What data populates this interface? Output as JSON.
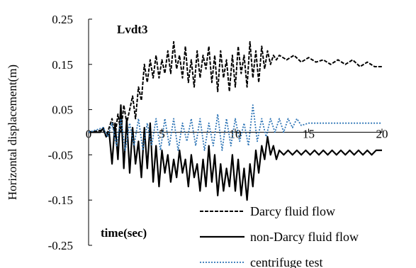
{
  "chart_data": {
    "type": "line",
    "ylabel": "Horizontal displacement(m)",
    "xlabel": "time(sec)",
    "annotation": "Lvdt3",
    "xlim": [
      0,
      20
    ],
    "ylim": [
      -0.25,
      0.25
    ],
    "xticks": [
      {
        "value": 0,
        "label": "0"
      },
      {
        "value": 5,
        "label": "5"
      },
      {
        "value": 10,
        "label": "10"
      },
      {
        "value": 15,
        "label": "15"
      },
      {
        "value": 20,
        "label": "20"
      }
    ],
    "yticks": [
      {
        "value": 0.25,
        "label": "0.25"
      },
      {
        "value": 0.15,
        "label": "0.15"
      },
      {
        "value": 0.05,
        "label": "0.05"
      },
      {
        "value": -0.05,
        "label": "-0.05"
      },
      {
        "value": -0.15,
        "label": "-0.15"
      },
      {
        "value": -0.25,
        "label": "-0.25"
      }
    ],
    "legend_position": "bottom-right",
    "series": [
      {
        "name": "Darcy fluid flow",
        "color": "#000000",
        "style": "dashed",
        "x": [
          0,
          1.0,
          1.2,
          1.4,
          1.6,
          1.8,
          2.0,
          2.2,
          2.4,
          2.6,
          2.8,
          3.0,
          3.2,
          3.4,
          3.6,
          3.8,
          4.0,
          4.2,
          4.4,
          4.6,
          4.8,
          5.0,
          5.2,
          5.4,
          5.6,
          5.8,
          6.0,
          6.2,
          6.4,
          6.6,
          6.8,
          7.0,
          7.2,
          7.4,
          7.6,
          7.8,
          8.0,
          8.2,
          8.4,
          8.6,
          8.8,
          9.0,
          9.2,
          9.4,
          9.6,
          9.8,
          10.0,
          10.2,
          10.4,
          10.6,
          10.8,
          11.0,
          11.2,
          11.4,
          11.6,
          11.8,
          12.0,
          12.2,
          12.4,
          12.6,
          12.8,
          13.0,
          13.5,
          14.0,
          14.5,
          15.0,
          15.5,
          16.0,
          16.5,
          17.0,
          17.5,
          18.0,
          18.5,
          19.0,
          19.5,
          20.0
        ],
        "y": [
          0.0,
          0.005,
          -0.01,
          0.01,
          0.03,
          -0.01,
          0.04,
          0.0,
          0.06,
          0.02,
          0.05,
          0.08,
          0.03,
          0.1,
          0.07,
          0.15,
          0.11,
          0.16,
          0.12,
          0.17,
          0.12,
          0.16,
          0.13,
          0.18,
          0.13,
          0.2,
          0.14,
          0.17,
          0.12,
          0.19,
          0.11,
          0.16,
          0.1,
          0.18,
          0.12,
          0.17,
          0.14,
          0.19,
          0.11,
          0.17,
          0.09,
          0.18,
          0.12,
          0.16,
          0.09,
          0.17,
          0.1,
          0.19,
          0.13,
          0.17,
          0.1,
          0.2,
          0.12,
          0.18,
          0.11,
          0.19,
          0.14,
          0.18,
          0.15,
          0.17,
          0.16,
          0.17,
          0.16,
          0.17,
          0.155,
          0.165,
          0.155,
          0.16,
          0.15,
          0.16,
          0.15,
          0.16,
          0.145,
          0.155,
          0.145,
          0.145
        ]
      },
      {
        "name": "non-Darcy fluid flow",
        "color": "#000000",
        "style": "solid",
        "x": [
          0,
          0.8,
          1.0,
          1.2,
          1.4,
          1.6,
          1.8,
          2.0,
          2.2,
          2.4,
          2.6,
          2.8,
          3.0,
          3.2,
          3.4,
          3.6,
          3.8,
          4.0,
          4.2,
          4.4,
          4.6,
          4.8,
          5.0,
          5.2,
          5.4,
          5.6,
          5.8,
          6.0,
          6.2,
          6.4,
          6.6,
          6.8,
          7.0,
          7.2,
          7.4,
          7.6,
          7.8,
          8.0,
          8.2,
          8.4,
          8.6,
          8.8,
          9.0,
          9.2,
          9.4,
          9.6,
          9.8,
          10.0,
          10.2,
          10.4,
          10.6,
          10.8,
          11.0,
          11.2,
          11.4,
          11.6,
          11.8,
          12.0,
          12.2,
          12.4,
          12.6,
          12.8,
          13.0,
          13.3,
          13.6,
          13.9,
          14.2,
          14.5,
          14.8,
          15.1,
          15.4,
          15.7,
          16.0,
          16.3,
          16.6,
          16.9,
          17.2,
          17.5,
          17.8,
          18.1,
          18.4,
          18.7,
          19.0,
          19.3,
          19.6,
          20.0
        ],
        "y": [
          0.0,
          0.0,
          0.01,
          -0.01,
          0.0,
          -0.07,
          0.02,
          -0.06,
          0.06,
          -0.08,
          0.03,
          -0.09,
          0.01,
          -0.07,
          -0.02,
          -0.1,
          0.01,
          -0.08,
          0.02,
          -0.11,
          -0.03,
          -0.12,
          -0.04,
          -0.09,
          -0.05,
          -0.11,
          -0.06,
          -0.1,
          -0.04,
          -0.09,
          -0.06,
          -0.12,
          -0.05,
          -0.1,
          -0.07,
          -0.13,
          -0.06,
          -0.12,
          -0.03,
          -0.11,
          -0.05,
          -0.14,
          -0.07,
          -0.13,
          -0.08,
          -0.12,
          -0.05,
          -0.13,
          -0.06,
          -0.14,
          -0.08,
          -0.15,
          -0.07,
          -0.12,
          -0.04,
          -0.09,
          -0.03,
          -0.06,
          -0.01,
          -0.05,
          -0.03,
          -0.06,
          -0.04,
          -0.05,
          -0.04,
          -0.05,
          -0.04,
          -0.05,
          -0.04,
          -0.05,
          -0.04,
          -0.05,
          -0.04,
          -0.05,
          -0.04,
          -0.05,
          -0.04,
          -0.05,
          -0.04,
          -0.05,
          -0.04,
          -0.05,
          -0.04,
          -0.05,
          -0.04,
          -0.04
        ]
      },
      {
        "name": "centrifuge test",
        "color": "#2e75b6",
        "style": "dotted",
        "x": [
          0,
          1.0,
          1.3,
          1.6,
          1.9,
          2.2,
          2.5,
          2.8,
          3.1,
          3.4,
          3.7,
          4.0,
          4.3,
          4.6,
          4.9,
          5.2,
          5.5,
          5.8,
          6.1,
          6.4,
          6.7,
          7.0,
          7.3,
          7.6,
          7.9,
          8.2,
          8.5,
          8.8,
          9.1,
          9.4,
          9.7,
          10.0,
          10.3,
          10.6,
          10.9,
          11.2,
          11.5,
          11.8,
          12.1,
          12.4,
          12.7,
          13.0,
          13.3,
          13.6,
          13.9,
          14.2,
          14.5,
          15.0,
          16.0,
          17.0,
          18.0,
          19.0,
          20.0
        ],
        "y": [
          0.0,
          0.01,
          -0.01,
          0.02,
          -0.03,
          0.03,
          -0.04,
          0.02,
          -0.03,
          0.03,
          -0.04,
          0.02,
          -0.03,
          0.03,
          -0.04,
          0.03,
          -0.03,
          0.03,
          -0.04,
          0.02,
          -0.02,
          0.03,
          -0.03,
          0.03,
          -0.04,
          0.02,
          -0.03,
          0.04,
          -0.04,
          0.03,
          -0.03,
          0.03,
          -0.02,
          0.02,
          -0.03,
          0.06,
          -0.02,
          0.03,
          -0.01,
          0.03,
          0.0,
          0.03,
          0.0,
          0.03,
          0.01,
          0.03,
          0.015,
          0.02,
          0.02,
          0.02,
          0.02,
          0.02,
          0.02
        ]
      }
    ]
  }
}
